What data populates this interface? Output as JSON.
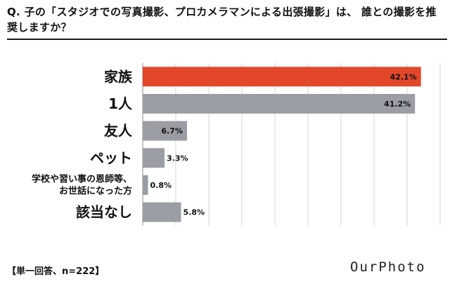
{
  "question": "Q. 子の「スタジオでの写真撮影、プロカメラマンによる出張撮影」は、 誰との撮影を推奨しますか？",
  "footer": "【単一回答、n=222】",
  "logo": "OurPhoto",
  "colors": {
    "highlight": "#e2472a",
    "bar": "#9a9ea4",
    "grid": "#d4d4d4",
    "axis": "#888888"
  },
  "chart_data": {
    "type": "bar",
    "orientation": "horizontal",
    "categories": [
      "家族",
      "1人",
      "友人",
      "ペット",
      "学校や習い事の恩師等、お世話になった方",
      "該当なし"
    ],
    "category_lines": [
      [
        "家族"
      ],
      [
        "1人"
      ],
      [
        "友人"
      ],
      [
        "ペット"
      ],
      [
        "学校や習い事の恩師等、",
        "お世話になった方"
      ],
      [
        "該当なし"
      ]
    ],
    "values": [
      42.1,
      41.2,
      6.7,
      3.3,
      0.8,
      5.8
    ],
    "value_labels": [
      "42.1%",
      "41.2%",
      "6.7%",
      "3.3%",
      "0.8%",
      "5.8%"
    ],
    "highlight_index": 0,
    "xlim": [
      0,
      45
    ],
    "grid": true,
    "legend": "none"
  }
}
